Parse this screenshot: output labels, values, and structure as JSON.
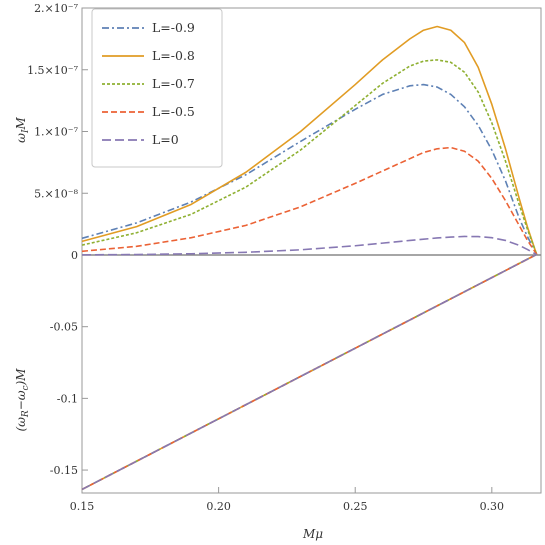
{
  "chart_data": [
    {
      "panel": "top",
      "type": "line",
      "ylabel": "ω_I M",
      "xlabel": "",
      "xlim": [
        0.15,
        0.318
      ],
      "ylim": [
        0,
        2e-07
      ],
      "yticks": [
        0,
        5e-08,
        1e-07,
        1.5e-07,
        2e-07
      ],
      "ytick_labels": [
        "0",
        "5.×10⁻⁸",
        "1.×10⁻⁷",
        "1.5×10⁻⁷",
        "2.×10⁻⁷"
      ],
      "legend_position": "top-left",
      "x": [
        0.15,
        0.17,
        0.19,
        0.21,
        0.23,
        0.25,
        0.26,
        0.27,
        0.275,
        0.28,
        0.285,
        0.29,
        0.295,
        0.3,
        0.305,
        0.31,
        0.313,
        0.316,
        0.3165
      ],
      "series": [
        {
          "name": "L=-0.9",
          "values": [
            1.35e-08,
            2.6e-08,
            4.3e-08,
            6.5e-08,
            9.2e-08,
            1.18e-07,
            1.3e-07,
            1.37e-07,
            1.38e-07,
            1.36e-07,
            1.3e-07,
            1.2e-07,
            1.05e-07,
            8.5e-08,
            6e-08,
            3e-08,
            1.5e-08,
            2.5e-09,
            0
          ]
        },
        {
          "name": "L=-0.8",
          "values": [
            1.1e-08,
            2.3e-08,
            4.1e-08,
            6.7e-08,
            1e-07,
            1.38e-07,
            1.58e-07,
            1.75e-07,
            1.82e-07,
            1.85e-07,
            1.82e-07,
            1.72e-07,
            1.52e-07,
            1.22e-07,
            8.6e-08,
            4.6e-08,
            2.3e-08,
            3e-09,
            0
          ]
        },
        {
          "name": "L=-0.7",
          "values": [
            8e-09,
            1.8e-08,
            3.3e-08,
            5.5e-08,
            8.5e-08,
            1.21e-07,
            1.39e-07,
            1.53e-07,
            1.57e-07,
            1.58e-07,
            1.56e-07,
            1.48e-07,
            1.32e-07,
            1.07e-07,
            7.6e-08,
            4.1e-08,
            2.1e-08,
            3e-09,
            0
          ]
        },
        {
          "name": "L=-0.5",
          "values": [
            3e-09,
            7e-09,
            1.4e-08,
            2.4e-08,
            3.9e-08,
            5.8e-08,
            6.8e-08,
            7.8e-08,
            8.3e-08,
            8.6e-08,
            8.7e-08,
            8.4e-08,
            7.6e-08,
            6.2e-08,
            4.4e-08,
            2.4e-08,
            1.2e-08,
            2e-09,
            0
          ]
        },
        {
          "name": "L=0",
          "values": [
            1e-10,
            4e-10,
            1e-09,
            2.2e-09,
            4.2e-09,
            7.5e-09,
            9.6e-09,
            1.18e-08,
            1.28e-08,
            1.38e-08,
            1.45e-08,
            1.5e-08,
            1.49e-08,
            1.4e-08,
            1.18e-08,
            7.8e-09,
            4.5e-09,
            8e-10,
            0
          ]
        }
      ]
    },
    {
      "panel": "bottom",
      "type": "line",
      "ylabel": "(ω_R−ω_c)M",
      "xlabel": "Mμ",
      "xlim": [
        0.15,
        0.318
      ],
      "ylim": [
        -0.166,
        0
      ],
      "xticks": [
        0.15,
        0.2,
        0.25,
        0.3
      ],
      "xtick_labels": [
        "0.15",
        "0.20",
        "0.25",
        "0.30"
      ],
      "yticks": [
        -0.05,
        -0.1,
        -0.15
      ],
      "ytick_labels": [
        "-0.05",
        "-0.1",
        "-0.15"
      ],
      "x": [
        0.15,
        0.316
      ],
      "series": [
        {
          "name": "L=-0.9",
          "values": [
            -0.1635,
            0
          ]
        },
        {
          "name": "L=-0.8",
          "values": [
            -0.1635,
            0
          ]
        },
        {
          "name": "L=-0.7",
          "values": [
            -0.1635,
            0
          ]
        },
        {
          "name": "L=-0.5",
          "values": [
            -0.1635,
            0
          ]
        },
        {
          "name": "L=0",
          "values": [
            -0.1635,
            0
          ]
        }
      ]
    }
  ],
  "legend": [
    {
      "label": "L=-0.9",
      "color": "#5e81b5",
      "dash": "dashdot"
    },
    {
      "label": "L=-0.8",
      "color": "#e19c24",
      "dash": "solid"
    },
    {
      "label": "L=-0.7",
      "color": "#8fb032",
      "dash": "dotted"
    },
    {
      "label": "L=-0.5",
      "color": "#eb6235",
      "dash": "dashed"
    },
    {
      "label": "L=0",
      "color": "#8778b3",
      "dash": "longdash"
    }
  ],
  "labels": {
    "top_ylabel_main": "ω",
    "top_ylabel_sub": "I",
    "top_ylabel_tail": "M",
    "bottom_ylabel_pre": "(ω",
    "bottom_ylabel_sub1": "R",
    "bottom_ylabel_mid": "−ω",
    "bottom_ylabel_sub2": "c",
    "bottom_ylabel_tail": ")M",
    "xlabel": "Mμ"
  }
}
